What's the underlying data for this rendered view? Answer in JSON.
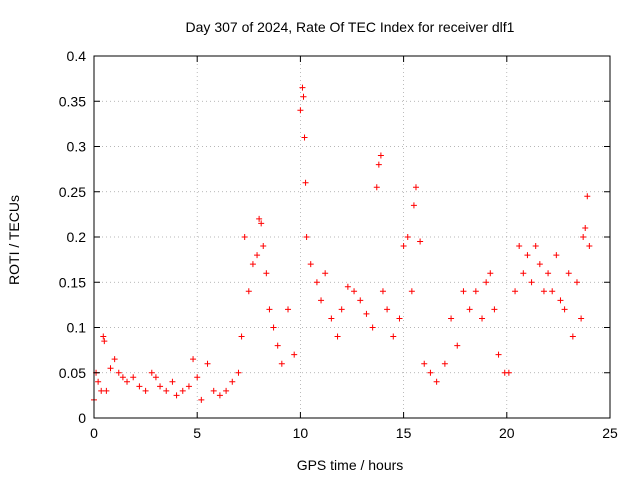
{
  "chart_data": {
    "type": "scatter",
    "title": "Day 307 of 2024, Rate Of TEC Index for receiver dlf1",
    "xlabel": "GPS time / hours",
    "ylabel": "ROTI / TECUs",
    "xlim": [
      0,
      25
    ],
    "ylim": [
      0,
      0.4
    ],
    "x_ticks": [
      0,
      5,
      10,
      15,
      20,
      25
    ],
    "x_tick_labels": [
      "0",
      "5",
      "10",
      "15",
      "20",
      "25"
    ],
    "y_ticks": [
      0,
      0.05,
      0.1,
      0.15,
      0.2,
      0.25,
      0.3,
      0.35,
      0.4
    ],
    "y_tick_labels": [
      "0",
      "0.05",
      "0.1",
      "0.15",
      "0.2",
      "0.25",
      "0.3",
      "0.35",
      "0.4"
    ],
    "grid": true,
    "marker": "+",
    "color": "#ff0000",
    "series": [
      {
        "name": "ROTI",
        "x": [
          0.0,
          0.1,
          0.2,
          0.35,
          0.45,
          0.5,
          0.6,
          0.8,
          1.0,
          1.2,
          1.4,
          1.6,
          1.9,
          2.2,
          2.5,
          2.8,
          3.0,
          3.2,
          3.5,
          3.8,
          4.0,
          4.3,
          4.6,
          4.8,
          5.0,
          5.2,
          5.5,
          5.8,
          6.1,
          6.4,
          6.7,
          7.0,
          7.15,
          7.3,
          7.5,
          7.7,
          7.9,
          8.0,
          8.1,
          8.2,
          8.35,
          8.5,
          8.7,
          8.9,
          9.1,
          9.4,
          9.7,
          10.0,
          10.1,
          10.15,
          10.2,
          10.25,
          10.3,
          10.5,
          10.8,
          11.0,
          11.2,
          11.5,
          11.8,
          12.0,
          12.3,
          12.6,
          12.9,
          13.2,
          13.5,
          13.7,
          13.8,
          13.9,
          14.0,
          14.2,
          14.5,
          14.8,
          15.0,
          15.2,
          15.4,
          15.5,
          15.6,
          15.8,
          16.0,
          16.3,
          16.6,
          17.0,
          17.3,
          17.6,
          17.9,
          18.2,
          18.5,
          18.8,
          19.0,
          19.2,
          19.4,
          19.6,
          19.9,
          20.1,
          20.4,
          20.6,
          20.8,
          21.0,
          21.2,
          21.4,
          21.6,
          21.8,
          22.0,
          22.2,
          22.4,
          22.6,
          22.8,
          23.0,
          23.2,
          23.4,
          23.6,
          23.7,
          23.8,
          23.9,
          24.0
        ],
        "y": [
          0.02,
          0.05,
          0.04,
          0.03,
          0.09,
          0.085,
          0.03,
          0.055,
          0.065,
          0.05,
          0.045,
          0.04,
          0.045,
          0.035,
          0.03,
          0.05,
          0.045,
          0.035,
          0.03,
          0.04,
          0.025,
          0.03,
          0.035,
          0.065,
          0.045,
          0.02,
          0.06,
          0.03,
          0.025,
          0.03,
          0.04,
          0.05,
          0.09,
          0.2,
          0.14,
          0.17,
          0.18,
          0.22,
          0.215,
          0.19,
          0.16,
          0.12,
          0.1,
          0.08,
          0.06,
          0.12,
          0.07,
          0.34,
          0.365,
          0.355,
          0.31,
          0.26,
          0.2,
          0.17,
          0.15,
          0.13,
          0.16,
          0.11,
          0.09,
          0.12,
          0.145,
          0.14,
          0.13,
          0.115,
          0.1,
          0.255,
          0.28,
          0.29,
          0.14,
          0.12,
          0.09,
          0.11,
          0.19,
          0.2,
          0.14,
          0.235,
          0.255,
          0.195,
          0.06,
          0.05,
          0.04,
          0.06,
          0.11,
          0.08,
          0.14,
          0.12,
          0.14,
          0.11,
          0.15,
          0.16,
          0.12,
          0.07,
          0.05,
          0.05,
          0.14,
          0.19,
          0.16,
          0.18,
          0.15,
          0.19,
          0.17,
          0.14,
          0.16,
          0.14,
          0.18,
          0.13,
          0.12,
          0.16,
          0.09,
          0.15,
          0.11,
          0.2,
          0.21,
          0.245,
          0.19
        ]
      }
    ]
  }
}
